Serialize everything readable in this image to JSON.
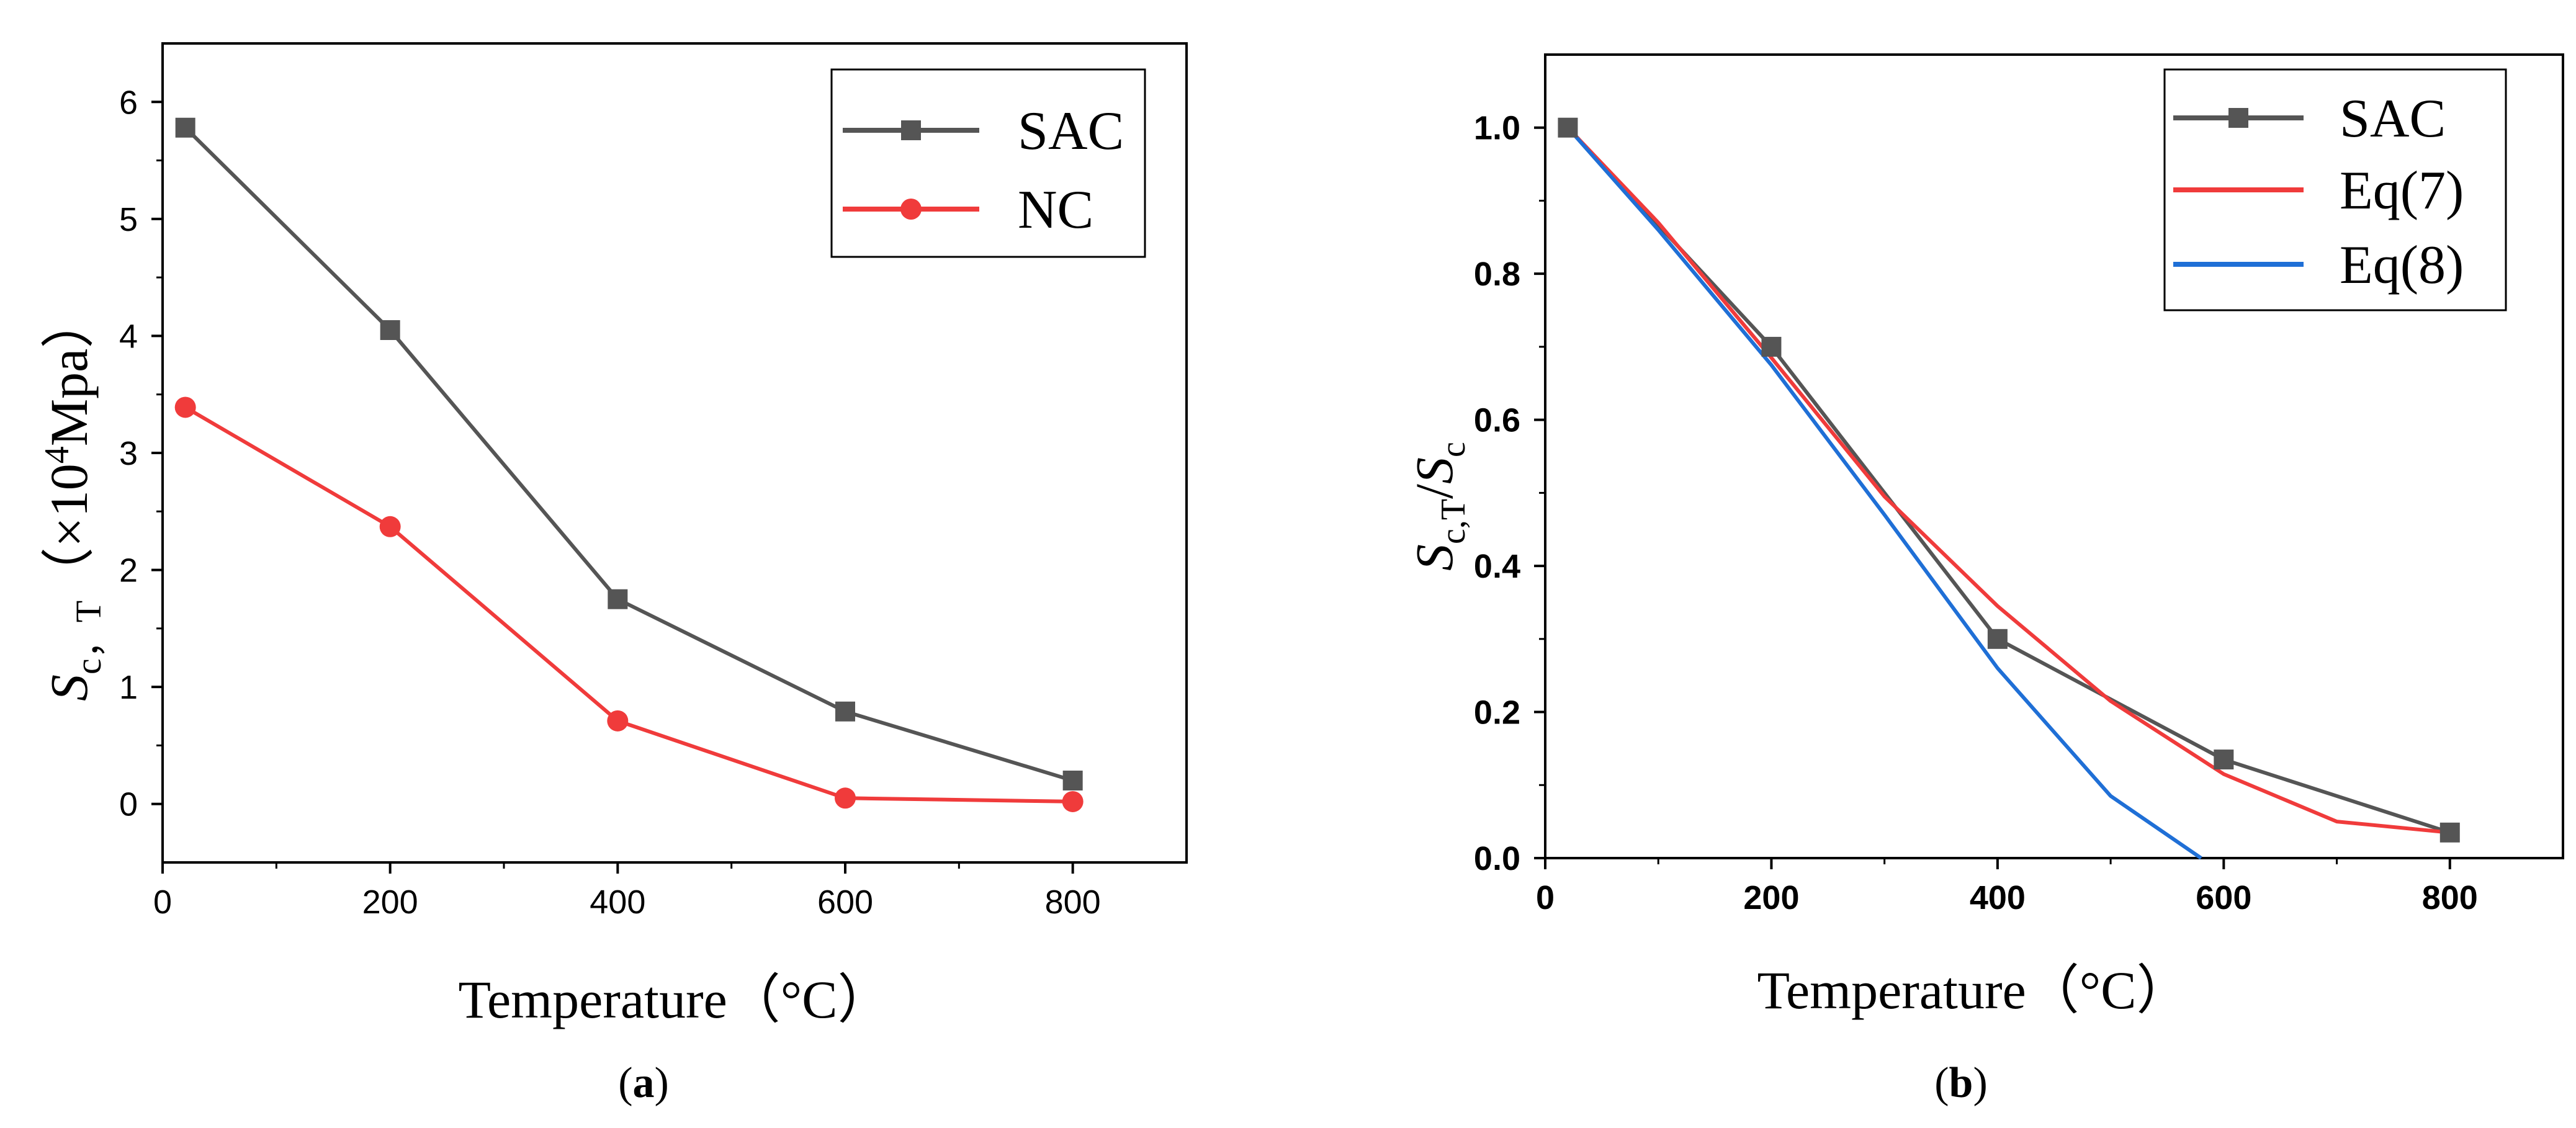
{
  "chart_data": [
    {
      "panel": "a",
      "type": "line",
      "caption_open": "(",
      "caption_letter": "a",
      "caption_close": ")",
      "xlabel": "Temperature（°C）",
      "ylabel_prefix": "S",
      "ylabel_sub": "c，T",
      "ylabel_mid": "（×10",
      "ylabel_sup": "4",
      "ylabel_suffix": "Mpa）",
      "xlim": [
        0,
        900
      ],
      "ylim": [
        -0.5,
        6.5
      ],
      "xticks": [
        0,
        200,
        400,
        600,
        800
      ],
      "yticks": [
        0,
        1,
        2,
        3,
        4,
        5,
        6
      ],
      "series": [
        {
          "name": "SAC",
          "color": "#555555",
          "marker": "square",
          "x": [
            20,
            200,
            400,
            600,
            800
          ],
          "y": [
            5.78,
            4.05,
            1.75,
            0.79,
            0.2
          ]
        },
        {
          "name": "NC",
          "color": "#f03b3b",
          "marker": "circle",
          "x": [
            20,
            200,
            400,
            600,
            800
          ],
          "y": [
            3.39,
            2.37,
            0.71,
            0.05,
            0.02
          ]
        }
      ],
      "legend_position": "top-right"
    },
    {
      "panel": "b",
      "type": "line",
      "caption_open": "(",
      "caption_letter": "b",
      "caption_close": ")",
      "xlabel": "Temperature（°C）",
      "ylabel_main": "S",
      "ylabel_sub1": "c,T",
      "ylabel_slash": "/",
      "ylabel_s2": "S",
      "ylabel_sub2": "c",
      "xlim": [
        0,
        900
      ],
      "ylim": [
        0,
        1.1
      ],
      "xticks": [
        0,
        200,
        400,
        600,
        800
      ],
      "yticks": [
        "0.0",
        "0.2",
        "0.4",
        "0.6",
        "0.8",
        "1.0"
      ],
      "series": [
        {
          "name": "SAC",
          "color": "#555555",
          "marker": "square",
          "x": [
            20,
            200,
            400,
            600,
            800
          ],
          "y": [
            1.0,
            0.7,
            0.3,
            0.135,
            0.035
          ]
        },
        {
          "name": "Eq(7)",
          "color": "#f03b3b",
          "marker": "none",
          "x": [
            20,
            100,
            200,
            300,
            400,
            500,
            600,
            700,
            800
          ],
          "y": [
            1.0,
            0.87,
            0.685,
            0.495,
            0.345,
            0.215,
            0.115,
            0.05,
            0.035
          ]
        },
        {
          "name": "Eq(8)",
          "color": "#1f6fd6",
          "marker": "none",
          "x": [
            20,
            100,
            200,
            300,
            400,
            500,
            580
          ],
          "y": [
            1.0,
            0.86,
            0.675,
            0.47,
            0.26,
            0.085,
            0.0
          ]
        }
      ],
      "legend_position": "top-right"
    }
  ]
}
